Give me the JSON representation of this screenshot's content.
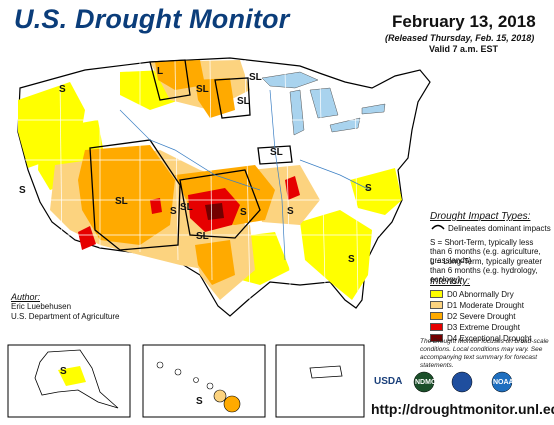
{
  "header": {
    "title": "U.S. Drought Monitor",
    "date": "February 13, 2018",
    "released": "(Released Thursday, Feb. 15, 2018)",
    "valid": "Valid 7 a.m. EST"
  },
  "impact_legend": {
    "title": "Drought Impact Types:",
    "delineates": "Delineates dominant impacts",
    "short_term": "S = Short-Term, typically less than 6 months (e.g. agriculture, grasslands)",
    "long_term": "L = Long-Term, typically greater than 6 months (e.g. hydrology, ecology)"
  },
  "intensity_legend": {
    "title": "Intensity:",
    "items": [
      {
        "label": "D0 Abnormally Dry",
        "color": "#ffff00"
      },
      {
        "label": "D1 Moderate Drought",
        "color": "#fcd37f"
      },
      {
        "label": "D2 Severe Drought",
        "color": "#ffaa00"
      },
      {
        "label": "D3 Extreme Drought",
        "color": "#e60000"
      },
      {
        "label": "D4 Exceptional Drought",
        "color": "#730000"
      }
    ]
  },
  "author": {
    "label": "Author:",
    "name": "Eric Luebehusen",
    "org": "U.S. Department of Agriculture"
  },
  "note": "The Drought Monitor focuses on broad-scale conditions. Local conditions may vary. See accompanying text summary for forecast statements.",
  "url": "http://droughtmonitor.unl.edu/",
  "logos": [
    "USDA",
    "NDMC",
    "NOAA"
  ],
  "map_labels": [
    "S",
    "L",
    "SL",
    "SL",
    "SL",
    "SL",
    "SL",
    "S",
    "S",
    "S",
    "SL",
    "S",
    "S",
    "S",
    "S",
    "SL",
    "S"
  ],
  "colors": {
    "water": "#a9d3ee",
    "border": "#000000",
    "state_line": "#ffffff"
  }
}
